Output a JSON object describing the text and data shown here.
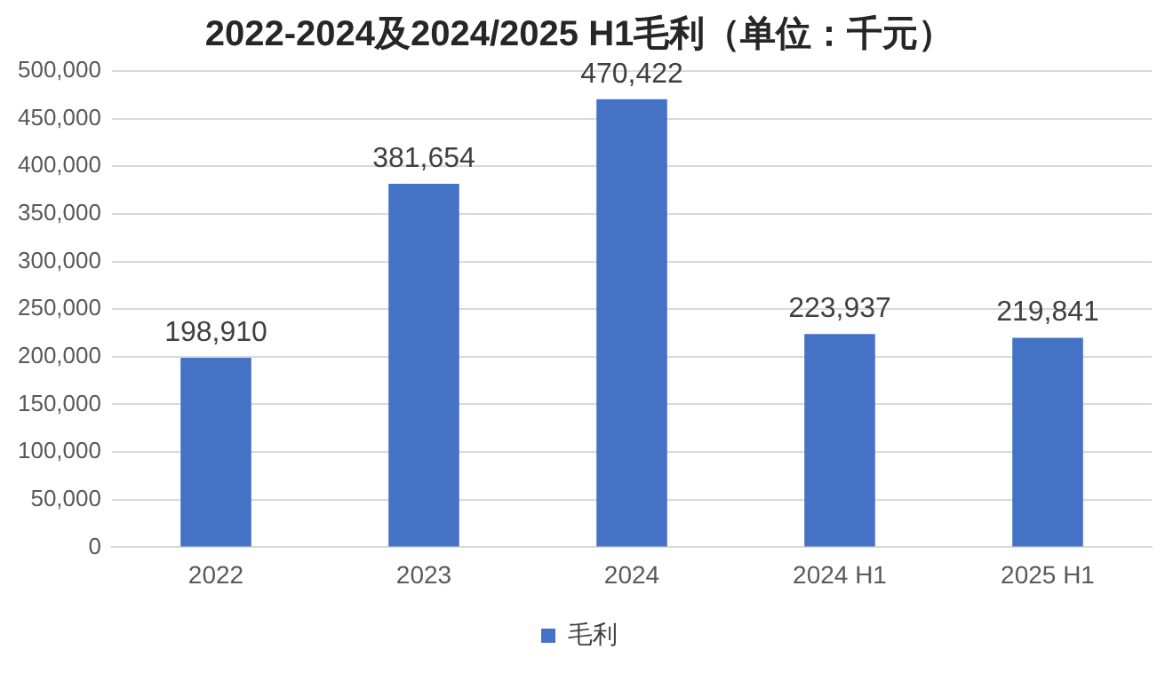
{
  "chart_data": {
    "type": "bar",
    "title": "2022-2024及2024/2025 H1毛利（单位：千元）",
    "categories": [
      "2022",
      "2023",
      "2024",
      "2024 H1",
      "2025 H1"
    ],
    "series": [
      {
        "name": "毛利",
        "color": "#4472c4",
        "values": [
          198910,
          381654,
          470422,
          223937,
          219841
        ],
        "value_labels": [
          "198,910",
          "381,654",
          "470,422",
          "223,937",
          "219,841"
        ]
      }
    ],
    "ylim": [
      0,
      500000
    ],
    "yticks": [
      0,
      {
        "value": 50000,
        "label": "50,000"
      },
      {
        "value": 100000,
        "label": "100,000"
      },
      {
        "value": 150000,
        "label": "150,000"
      },
      {
        "value": 200000,
        "label": "200,000"
      },
      {
        "value": 250000,
        "label": "250,000"
      },
      {
        "value": 300000,
        "label": "300,000"
      },
      {
        "value": 350000,
        "label": "350,000"
      },
      {
        "value": 400000,
        "label": "400,000"
      },
      {
        "value": 450000,
        "label": "450,000"
      },
      {
        "value": 500000,
        "label": "500,000"
      }
    ],
    "grid": "y",
    "legend": "bottom"
  }
}
